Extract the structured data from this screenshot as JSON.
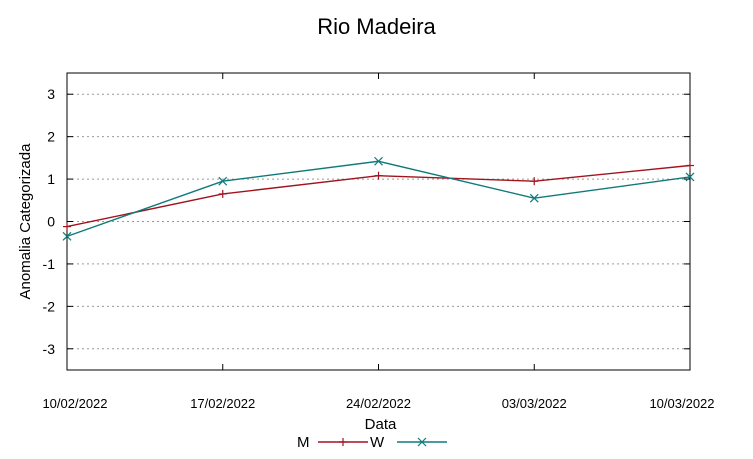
{
  "chart_data": {
    "type": "line",
    "title": "Rio Madeira",
    "xlabel": "Data",
    "ylabel": "Anomalia Categorizada",
    "categories": [
      "10/02/2022",
      "17/02/2022",
      "24/02/2022",
      "03/03/2022",
      "10/03/2022"
    ],
    "ylim": [
      -3.5,
      3.5
    ],
    "yticks": [
      "-3",
      "-2",
      "-1",
      "0",
      "1",
      "2",
      "3"
    ],
    "grid": true,
    "legend_position": "bottom-center",
    "series": [
      {
        "name": "M",
        "marker": "+",
        "color": "#a0141e",
        "values": [
          -0.12,
          0.65,
          1.08,
          0.95,
          1.32
        ]
      },
      {
        "name": "W",
        "marker": "x",
        "color": "#0f7a7a",
        "values": [
          -0.35,
          0.95,
          1.42,
          0.55,
          1.05
        ]
      }
    ]
  }
}
